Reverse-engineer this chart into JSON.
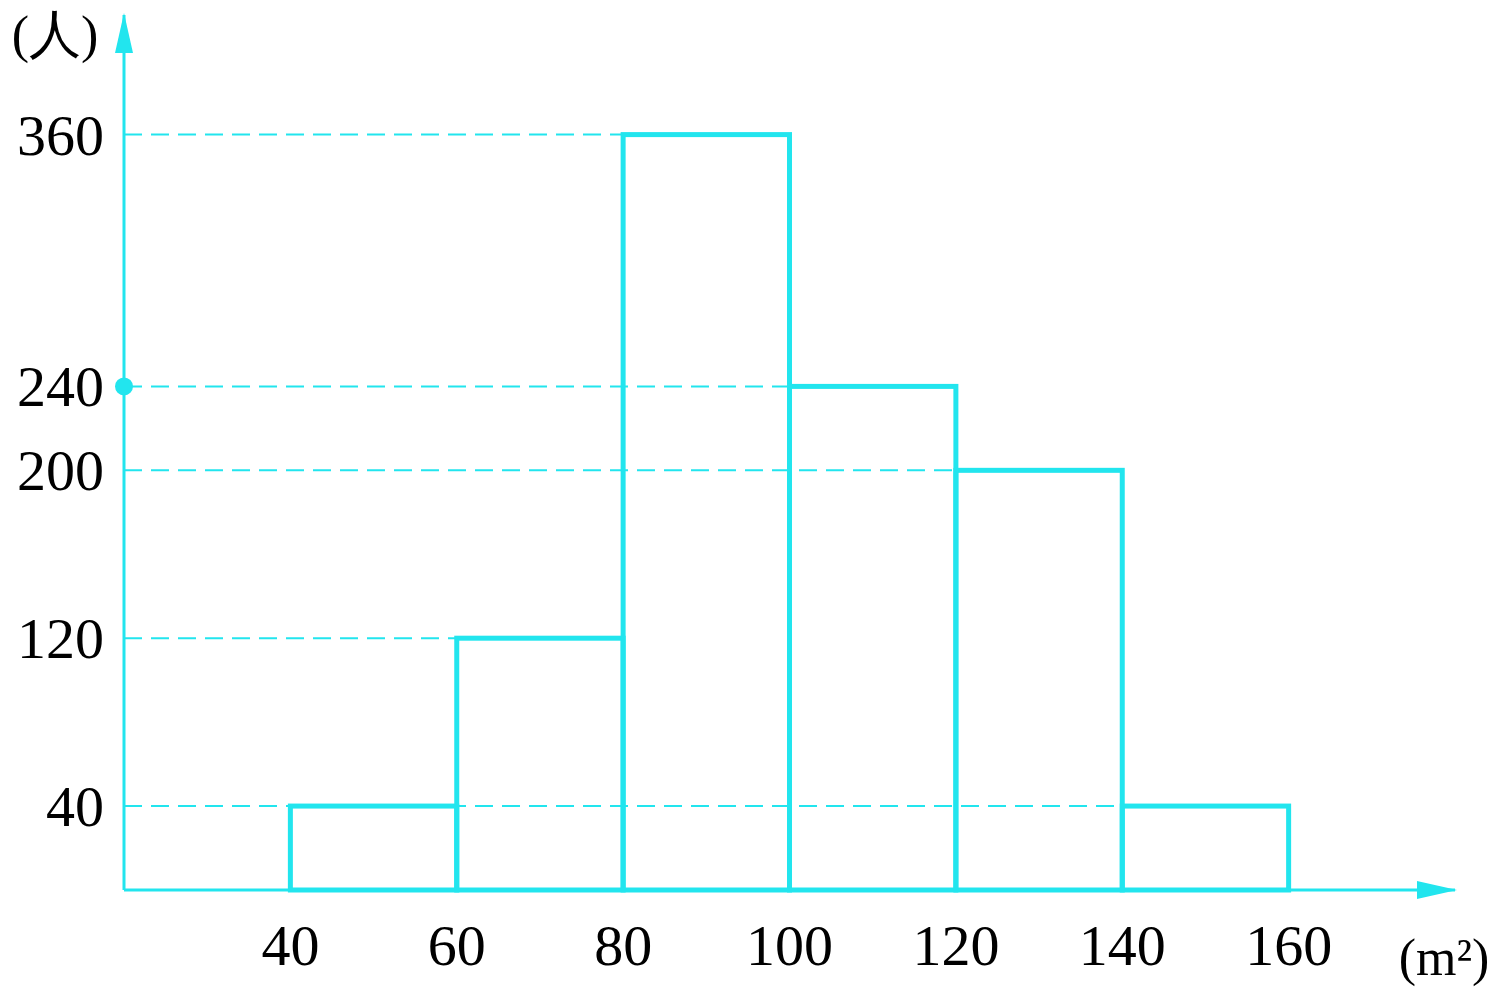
{
  "chart_data": {
    "type": "histogram",
    "xlabel": "(m²)",
    "ylabel": "(人)",
    "bins": [
      40,
      60,
      80,
      100,
      120,
      140,
      160
    ],
    "values": [
      40,
      120,
      360,
      240,
      200,
      40
    ],
    "color": "#22e5ee",
    "xlim": [
      20,
      180
    ],
    "ylim": [
      0,
      417
    ],
    "xticks": [
      40,
      60,
      80,
      100,
      120,
      140,
      160
    ],
    "yticks": [
      40,
      120,
      200,
      240,
      360
    ],
    "ref_lines": [
      {
        "axis": "y",
        "value": 40,
        "line_style": "dashed"
      },
      {
        "axis": "y",
        "value": 120,
        "line_style": "dashed"
      },
      {
        "axis": "y",
        "value": 200,
        "line_style": "dashed"
      },
      {
        "axis": "y",
        "value": 240,
        "line_style": "dashed"
      },
      {
        "axis": "y",
        "value": 360,
        "line_style": "dashed"
      }
    ]
  }
}
